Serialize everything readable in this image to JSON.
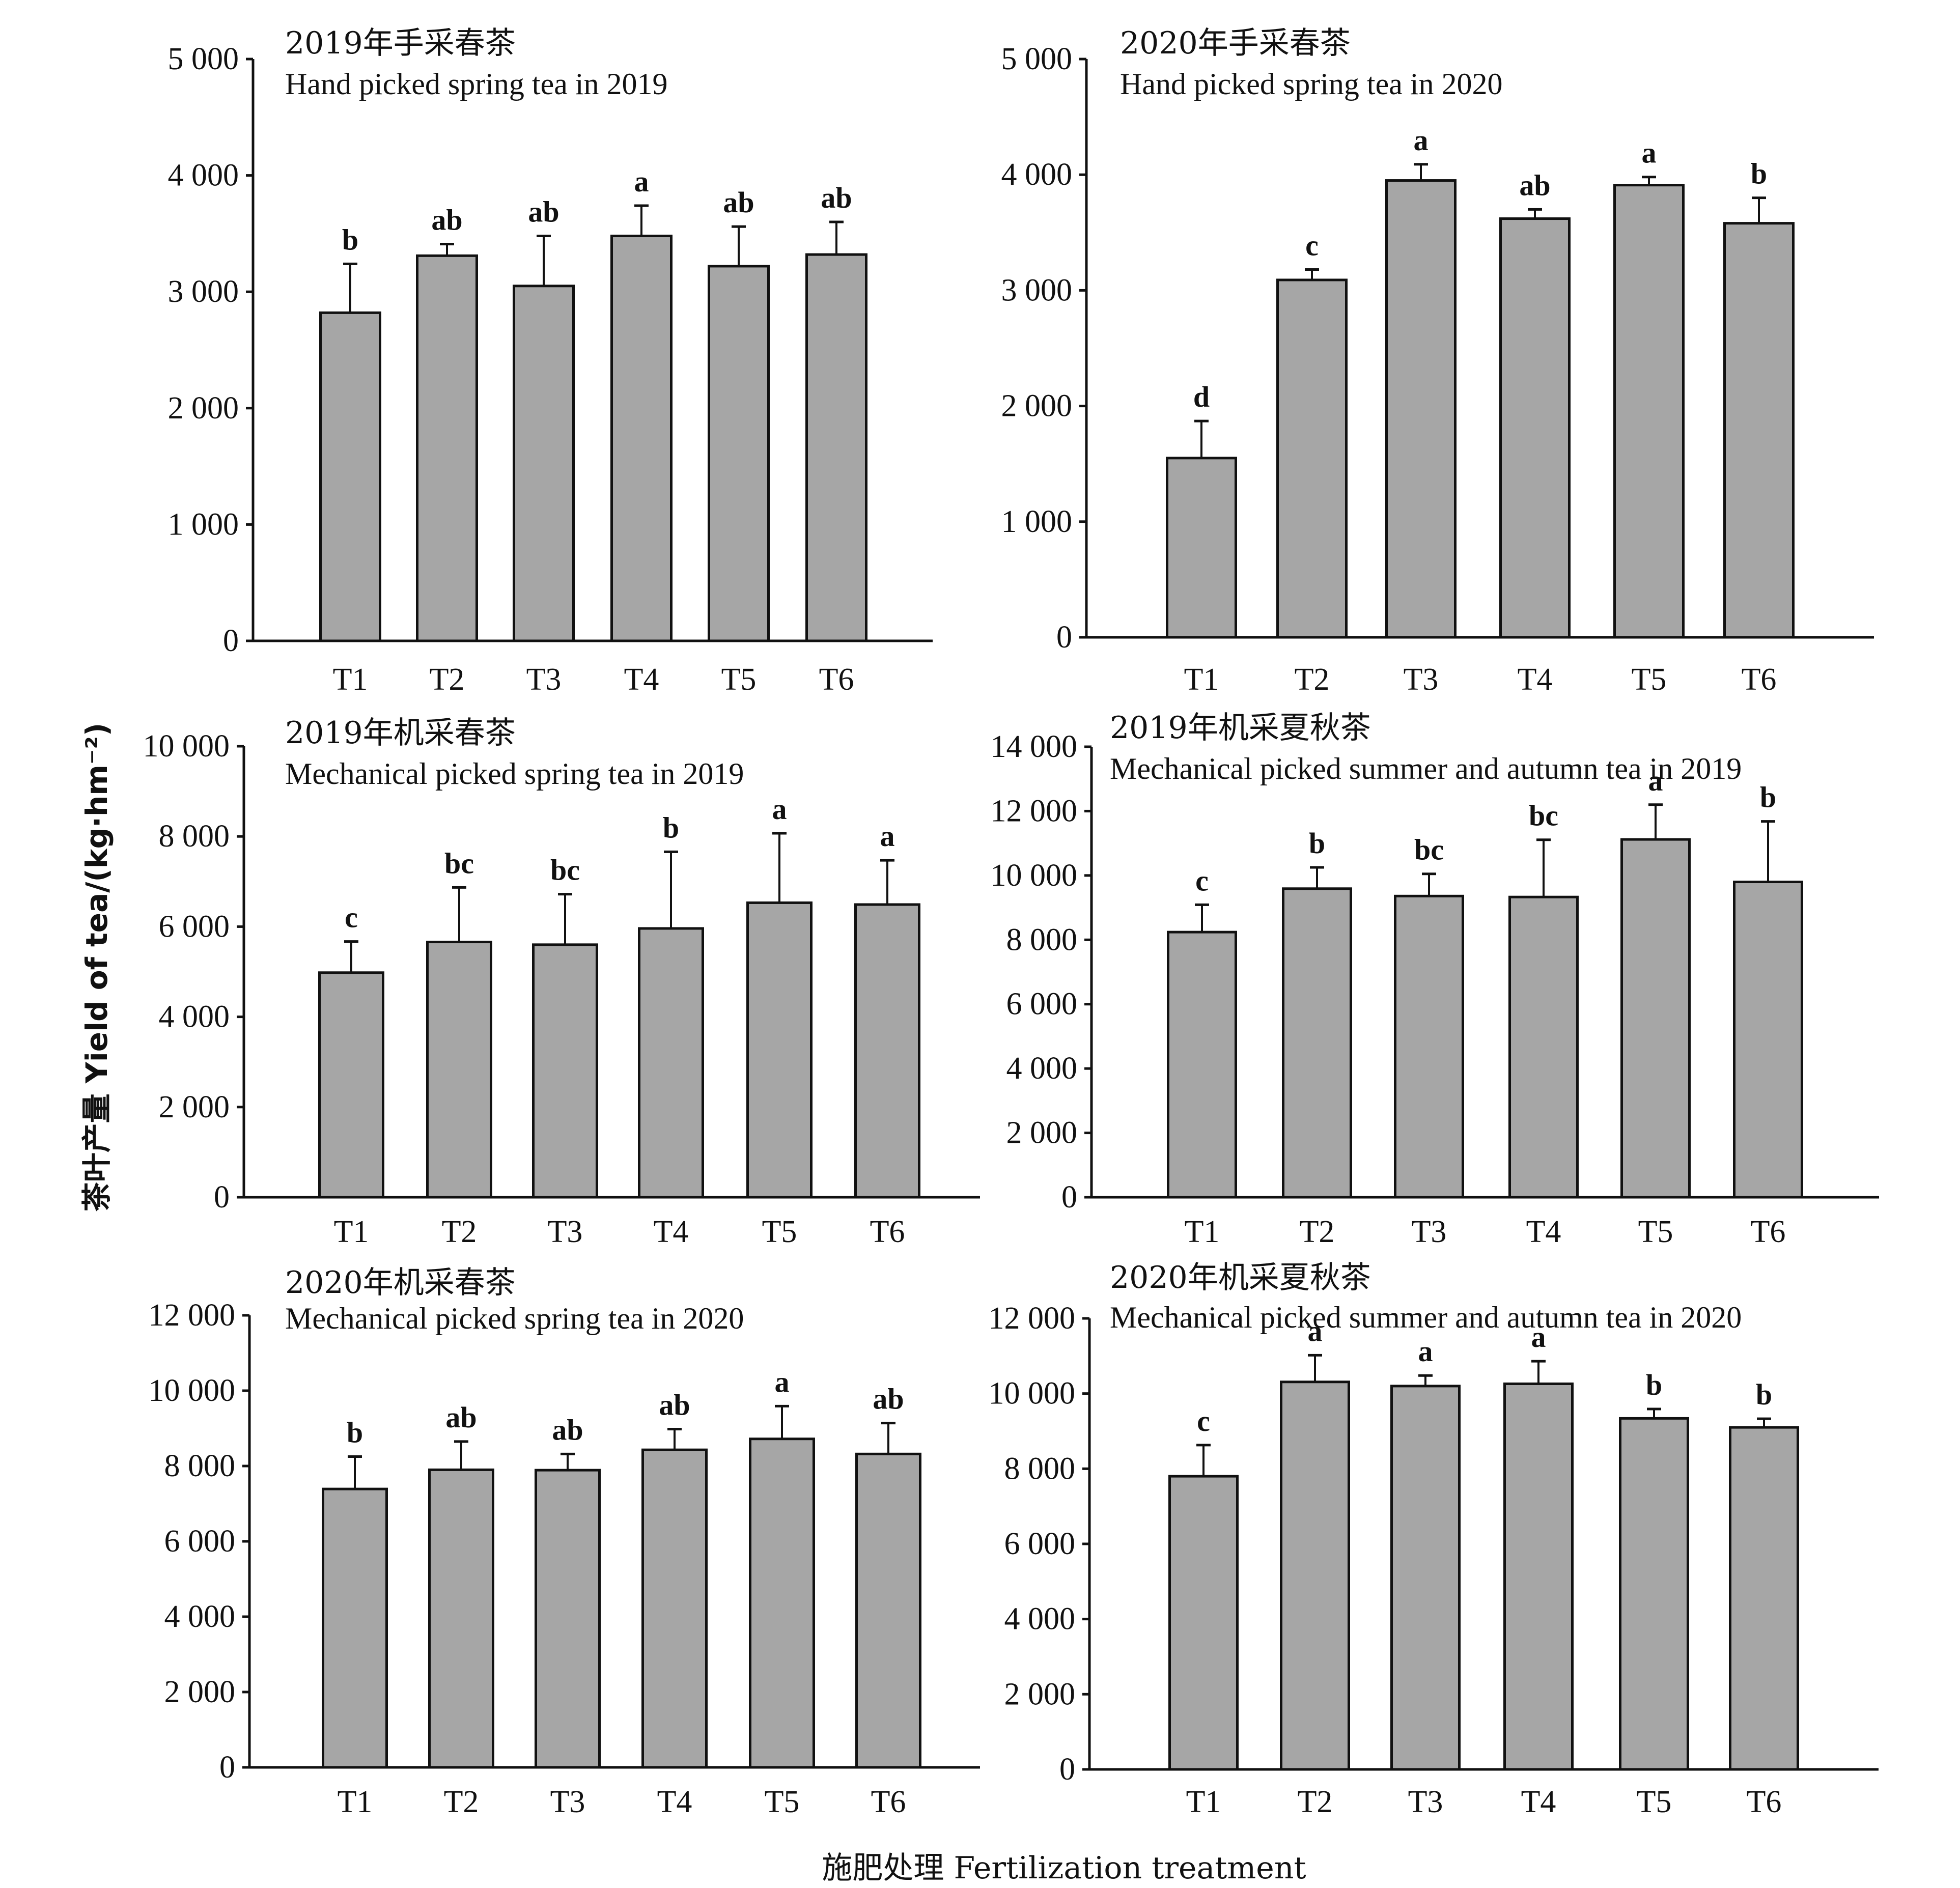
{
  "figure": {
    "ylabel": "茶叶产量 Yield of tea/(kg·hm⁻²)",
    "xlabel": "施肥处理 Fertilization treatment",
    "bar_color": "#a6a6a6",
    "edge_color": "#111111"
  },
  "chart_data": [
    {
      "type": "bar",
      "title_cn": "2019年手采春茶",
      "title": "Hand picked spring tea in 2019",
      "categories": [
        "T1",
        "T2",
        "T3",
        "T4",
        "T5",
        "T6"
      ],
      "values": [
        2820,
        3310,
        3050,
        3480,
        3220,
        3320
      ],
      "errors": [
        420,
        100,
        430,
        260,
        340,
        280
      ],
      "significance": [
        "b",
        "ab",
        "ab",
        "a",
        "ab",
        "ab"
      ],
      "ylim": [
        0,
        5000
      ],
      "yticks": [
        0,
        1000,
        2000,
        3000,
        4000,
        5000
      ],
      "ytick_labels": [
        "0",
        "1 000",
        "2 000",
        "3 000",
        "4 000",
        "5 000"
      ],
      "grid": false
    },
    {
      "type": "bar",
      "title_cn": "2020年手采春茶",
      "title": "Hand picked spring tea in 2020",
      "categories": [
        "T1",
        "T2",
        "T3",
        "T4",
        "T5",
        "T6"
      ],
      "values": [
        1550,
        3090,
        3950,
        3620,
        3910,
        3580
      ],
      "errors": [
        320,
        90,
        140,
        80,
        70,
        220
      ],
      "significance": [
        "d",
        "c",
        "a",
        "ab",
        "a",
        "b"
      ],
      "ylim": [
        0,
        5000
      ],
      "yticks": [
        0,
        1000,
        2000,
        3000,
        4000,
        5000
      ],
      "ytick_labels": [
        "0",
        "1 000",
        "2 000",
        "3 000",
        "4 000",
        "5 000"
      ],
      "grid": false
    },
    {
      "type": "bar",
      "title_cn": "2019年机采春茶",
      "title": "Mechanical picked spring tea in 2019",
      "categories": [
        "T1",
        "T2",
        "T3",
        "T4",
        "T5",
        "T6"
      ],
      "values": [
        4980,
        5660,
        5600,
        5960,
        6530,
        6490
      ],
      "errors": [
        690,
        1210,
        1120,
        1700,
        1540,
        980
      ],
      "significance": [
        "c",
        "bc",
        "bc",
        "b",
        "a",
        "a"
      ],
      "ylim": [
        0,
        10000
      ],
      "yticks": [
        0,
        2000,
        4000,
        6000,
        8000,
        10000
      ],
      "ytick_labels": [
        "0",
        "2 000",
        "4 000",
        "6 000",
        "8 000",
        "10 000"
      ],
      "grid": false
    },
    {
      "type": "bar",
      "title_cn": "2019年机采夏秋茶",
      "title": "Mechanical picked summer and autumn tea in 2019",
      "categories": [
        "T1",
        "T2",
        "T3",
        "T4",
        "T5",
        "T6"
      ],
      "values": [
        8240,
        9590,
        9360,
        9330,
        11120,
        9800
      ],
      "errors": [
        850,
        660,
        690,
        1780,
        1080,
        1880
      ],
      "significance": [
        "c",
        "b",
        "bc",
        "bc",
        "a",
        "b"
      ],
      "ylim": [
        0,
        14000
      ],
      "yticks": [
        0,
        2000,
        4000,
        6000,
        8000,
        10000,
        12000,
        14000
      ],
      "ytick_labels": [
        "0",
        "2 000",
        "4 000",
        "6 000",
        "8 000",
        "10 000",
        "12 000",
        "14 000"
      ],
      "grid": false
    },
    {
      "type": "bar",
      "title_cn": "2020年机采春茶",
      "title": "Mechanical picked spring tea in 2020",
      "categories": [
        "T1",
        "T2",
        "T3",
        "T4",
        "T5",
        "T6"
      ],
      "values": [
        7390,
        7900,
        7890,
        8430,
        8720,
        8320
      ],
      "errors": [
        860,
        750,
        430,
        550,
        870,
        820
      ],
      "significance": [
        "b",
        "ab",
        "ab",
        "ab",
        "a",
        "ab"
      ],
      "ylim": [
        0,
        12000
      ],
      "yticks": [
        0,
        2000,
        4000,
        6000,
        8000,
        10000,
        12000
      ],
      "ytick_labels": [
        "0",
        "2 000",
        "4 000",
        "6 000",
        "8 000",
        "10 000",
        "12 000"
      ],
      "grid": false
    },
    {
      "type": "bar",
      "title_cn": "2020年机采夏秋茶",
      "title": "Mechanical picked summer and autumn tea in 2020",
      "categories": [
        "T1",
        "T2",
        "T3",
        "T4",
        "T5",
        "T6"
      ],
      "values": [
        7800,
        10310,
        10200,
        10260,
        9340,
        9100
      ],
      "errors": [
        830,
        710,
        280,
        600,
        250,
        230
      ],
      "significance": [
        "c",
        "a",
        "a",
        "a",
        "b",
        "b"
      ],
      "ylim": [
        0,
        12000
      ],
      "yticks": [
        0,
        2000,
        4000,
        6000,
        8000,
        10000,
        12000
      ],
      "ytick_labels": [
        "0",
        "2 000",
        "4 000",
        "6 000",
        "8 000",
        "10 000",
        "12 000"
      ],
      "grid": false
    }
  ]
}
